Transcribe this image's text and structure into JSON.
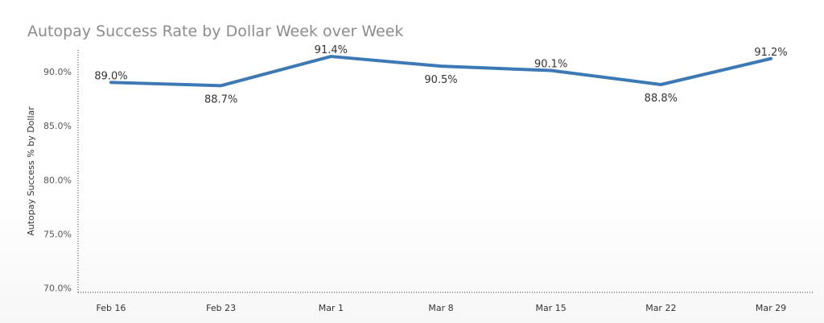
{
  "chart_data": {
    "type": "line",
    "title": "Autopay Success Rate by Dollar Week over Week",
    "xlabel": "",
    "ylabel": "Autopay Success % by Dollar",
    "categories": [
      "Feb 16",
      "Feb 23",
      "Mar 1",
      "Mar 8",
      "Mar 15",
      "Mar 22",
      "Mar 29"
    ],
    "series": [
      {
        "values": [
          89.0,
          88.7,
          91.4,
          90.5,
          90.1,
          88.8,
          91.2
        ],
        "color": "#3d79b5"
      }
    ],
    "data_labels": [
      "89.0%",
      "88.7%",
      "91.4%",
      "90.5%",
      "90.1%",
      "88.8%",
      "91.2%"
    ],
    "data_label_positions": [
      "above",
      "below",
      "above",
      "below",
      "above",
      "below",
      "above"
    ],
    "ylim": [
      69.6,
      92.0
    ],
    "yticks": [
      70,
      75,
      80,
      85,
      90
    ],
    "ytick_labels": [
      "70.0%",
      "75.0%",
      "80.0%",
      "85.0%",
      "90.0%"
    ],
    "grid": false,
    "legend": "none"
  }
}
